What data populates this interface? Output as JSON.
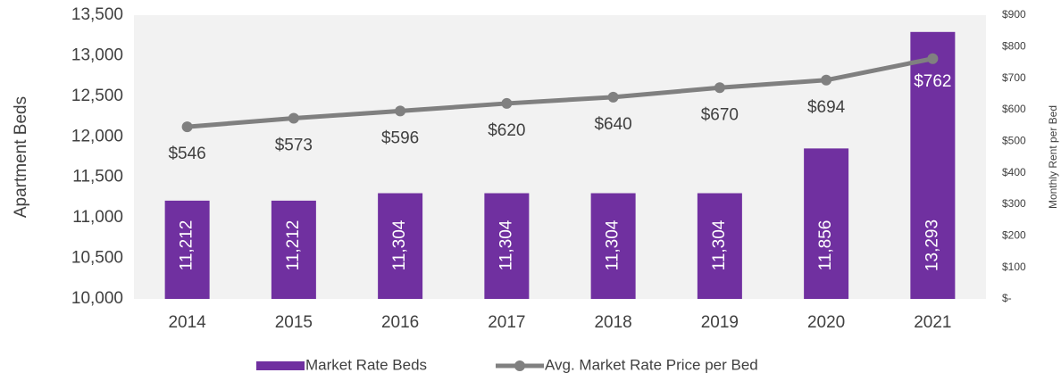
{
  "chart_data": {
    "type": "combo",
    "categories": [
      "2014",
      "2015",
      "2016",
      "2017",
      "2018",
      "2019",
      "2020",
      "2021"
    ],
    "series": [
      {
        "name": "Market Rate Beds",
        "type": "bar",
        "axis": "y",
        "color": "#7030a0",
        "values": [
          11212,
          11212,
          11304,
          11304,
          11304,
          11304,
          11856,
          13293
        ],
        "value_labels": [
          "11,212",
          "11,212",
          "11,304",
          "11,304",
          "11,304",
          "11,304",
          "11,856",
          "13,293"
        ]
      },
      {
        "name": "Avg. Market Rate Price per Bed",
        "type": "line",
        "axis": "y2",
        "color": "#808080",
        "values": [
          546,
          573,
          596,
          620,
          640,
          670,
          694,
          762
        ],
        "value_labels": [
          "$546",
          "$573",
          "$596",
          "$620",
          "$640",
          "$670",
          "$694",
          "$762"
        ]
      }
    ],
    "ylabel": "Apartment Beds",
    "y2label": "Monthly Rent per Bed",
    "ylim": [
      10000,
      13500
    ],
    "yticks": [
      {
        "value": 10000,
        "label": "10,000"
      },
      {
        "value": 10500,
        "label": "10,500"
      },
      {
        "value": 11000,
        "label": "11,000"
      },
      {
        "value": 11500,
        "label": "11,500"
      },
      {
        "value": 12000,
        "label": "12,000"
      },
      {
        "value": 12500,
        "label": "12,500"
      },
      {
        "value": 13000,
        "label": "13,000"
      },
      {
        "value": 13500,
        "label": "13,500"
      }
    ],
    "y2lim": [
      0,
      900
    ],
    "y2ticks": [
      {
        "value": 0,
        "label": "$-"
      },
      {
        "value": 100,
        "label": "$100"
      },
      {
        "value": 200,
        "label": "$200"
      },
      {
        "value": 300,
        "label": "$300"
      },
      {
        "value": 400,
        "label": "$400"
      },
      {
        "value": 500,
        "label": "$500"
      },
      {
        "value": 600,
        "label": "$600"
      },
      {
        "value": 700,
        "label": "$700"
      },
      {
        "value": 800,
        "label": "$800"
      },
      {
        "value": 900,
        "label": "$900"
      }
    ],
    "legend": "bottom"
  }
}
